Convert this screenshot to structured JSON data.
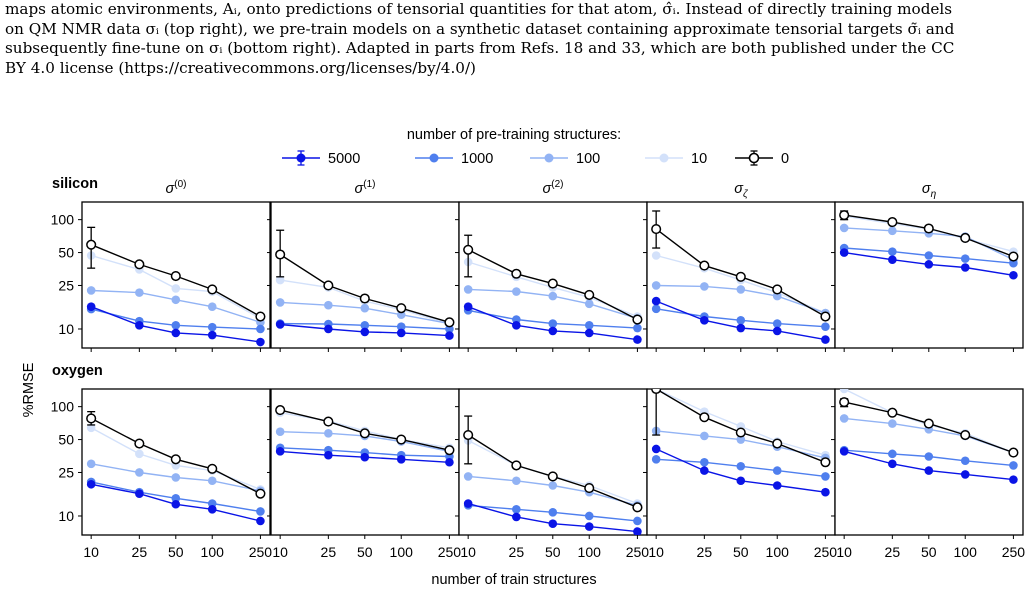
{
  "caption": {
    "lines": [
      "maps atomic environments, Aᵢ, onto predictions of tensorial quantities for that atom, σ̂ᵢ. Instead of directly training models",
      "on QM NMR data σᵢ (top right), we pre-train models on a synthetic dataset containing approximate tensorial targets σ̃ᵢ and",
      "subsequently fine-tune on σᵢ (bottom right). Adapted in parts from Refs. 18 and 33, which are both published under the CC",
      "BY 4.0 license (https://creativecommons.org/licenses/by/4.0/)"
    ]
  },
  "chart_data": {
    "type": "line",
    "legend_title": "number of pre-training structures:",
    "legend_position": "top-center",
    "series_styles": [
      {
        "name": "5000",
        "color": "#0a14e6",
        "fill": "#0a14e6"
      },
      {
        "name": "1000",
        "color": "#4f7fee",
        "fill": "#4f7fee"
      },
      {
        "name": "100",
        "color": "#92b3f4",
        "fill": "#92b3f4"
      },
      {
        "name": "10",
        "color": "#d3e1fa",
        "fill": "#d3e1fa"
      },
      {
        "name": "0",
        "color": "#000000",
        "fill": "#ffffff"
      }
    ],
    "x": [
      10,
      25,
      50,
      100,
      250
    ],
    "x_ticks": [
      "10",
      "25",
      "50",
      "100",
      "250"
    ],
    "y_ticks": [
      10,
      25,
      50,
      100
    ],
    "y_tick_labels": [
      "10",
      "25",
      "50",
      "100"
    ],
    "xscale": "log",
    "yscale": "log",
    "xlim": [
      8.4,
      300
    ],
    "ylim": [
      6.7,
      145
    ],
    "xlabel": "number of train structures",
    "ylabel": "%RMSE",
    "row_labels": [
      "silicon",
      "oxygen"
    ],
    "col_titles": [
      {
        "base": "σ",
        "sup": "(0)",
        "sub": ""
      },
      {
        "base": "σ",
        "sup": "(1)",
        "sub": ""
      },
      {
        "base": "σ",
        "sup": "(2)",
        "sub": ""
      },
      {
        "base": "σ",
        "sup": "",
        "sub": "ζ"
      },
      {
        "base": "σ",
        "sup": "",
        "sub": "η"
      }
    ],
    "panels": [
      {
        "row": 0,
        "col": 0,
        "errbar_0": [
          36,
          85
        ],
        "series": [
          {
            "name": "5000",
            "values": [
              16,
              10.8,
              9.2,
              8.8,
              7.6
            ]
          },
          {
            "name": "1000",
            "values": [
              15.2,
              11.8,
              10.8,
              10.4,
              10.0
            ]
          },
          {
            "name": "100",
            "values": [
              22.5,
              21.5,
              18.5,
              16.0,
              11.5
            ]
          },
          {
            "name": "10",
            "values": [
              47,
              35,
              23.5,
              22,
              12.5
            ]
          },
          {
            "name": "0",
            "values": [
              59,
              39,
              30.5,
              23,
              13
            ]
          }
        ]
      },
      {
        "row": 0,
        "col": 1,
        "errbar_0": [
          30,
          80
        ],
        "series": [
          {
            "name": "5000",
            "values": [
              11.0,
              10.0,
              9.4,
              9.2,
              8.7
            ]
          },
          {
            "name": "1000",
            "values": [
              11.2,
              11.1,
              10.8,
              10.5,
              10.0
            ]
          },
          {
            "name": "100",
            "values": [
              17.5,
              16.5,
              15.5,
              13.5,
              11.2
            ]
          },
          {
            "name": "10",
            "values": [
              28,
              24,
              18,
              15,
              11.2
            ]
          },
          {
            "name": "0",
            "values": [
              48,
              25,
              19,
              15.5,
              11.5
            ]
          }
        ]
      },
      {
        "row": 0,
        "col": 2,
        "errbar_0": [
          30,
          72
        ],
        "series": [
          {
            "name": "5000",
            "values": [
              16.0,
              10.8,
              9.6,
              9.2,
              8.0
            ]
          },
          {
            "name": "1000",
            "values": [
              14.8,
              12.2,
              11.2,
              10.8,
              10.2
            ]
          },
          {
            "name": "100",
            "values": [
              23.0,
              22.0,
              20.0,
              17.0,
              12.5
            ]
          },
          {
            "name": "10",
            "values": [
              41,
              30,
              24,
              19.5,
              13.0
            ]
          },
          {
            "name": "0",
            "values": [
              53,
              32,
              26,
              20.5,
              12.2
            ]
          }
        ]
      },
      {
        "row": 0,
        "col": 3,
        "errbar_0": [
          55,
          120
        ],
        "series": [
          {
            "name": "5000",
            "values": [
              18,
              12,
              10.2,
              9.6,
              8.0
            ]
          },
          {
            "name": "1000",
            "values": [
              15.3,
              13.0,
              12.0,
              11.2,
              10.5
            ]
          },
          {
            "name": "100",
            "values": [
              25,
              24.5,
              23,
              20,
              14
            ]
          },
          {
            "name": "10",
            "values": [
              47,
              36,
              28,
              21.5,
              14
            ]
          },
          {
            "name": "0",
            "values": [
              82,
              38,
              30,
              23,
              13
            ]
          }
        ]
      },
      {
        "row": 0,
        "col": 4,
        "errbar_0": [
          100,
          120
        ],
        "series": [
          {
            "name": "5000",
            "values": [
              50,
              43,
              39,
              36.5,
              31
            ]
          },
          {
            "name": "1000",
            "values": [
              55,
              51,
              47,
              44,
              40
            ]
          },
          {
            "name": "100",
            "values": [
              84,
              79,
              75,
              70,
              43
            ]
          },
          {
            "name": "10",
            "values": [
              108,
              92,
              82,
              67,
              51
            ]
          },
          {
            "name": "0",
            "values": [
              110,
              95,
              83,
              68,
              46
            ]
          }
        ]
      },
      {
        "row": 1,
        "col": 0,
        "errbar_0": [
          68,
          90
        ],
        "series": [
          {
            "name": "5000",
            "values": [
              19.5,
              16.0,
              12.8,
              11.5,
              9.0
            ]
          },
          {
            "name": "1000",
            "values": [
              20.5,
              16.5,
              14.5,
              13.0,
              11.0
            ]
          },
          {
            "name": "100",
            "values": [
              30,
              25,
              22.5,
              21,
              17
            ]
          },
          {
            "name": "10",
            "values": [
              64,
              37,
              29,
              26,
              17.5
            ]
          },
          {
            "name": "0",
            "values": [
              78,
              46,
              33,
              27,
              16
            ]
          }
        ]
      },
      {
        "row": 1,
        "col": 1,
        "errbar_0": [
          90,
          95
        ],
        "series": [
          {
            "name": "5000",
            "values": [
              39,
              36,
              34.5,
              33,
              31
            ]
          },
          {
            "name": "1000",
            "values": [
              42,
              40,
              38,
              36,
              35
            ]
          },
          {
            "name": "100",
            "values": [
              59,
              57,
              54,
              48,
              39
            ]
          },
          {
            "name": "10",
            "values": [
              88,
              74,
              60,
              50,
              42
            ]
          },
          {
            "name": "0",
            "values": [
              93,
              73,
              57,
              50,
              40
            ]
          }
        ]
      },
      {
        "row": 1,
        "col": 2,
        "errbar_0": [
          30,
          82
        ],
        "series": [
          {
            "name": "5000",
            "values": [
              13.0,
              9.8,
              8.5,
              8.0,
              7.2
            ]
          },
          {
            "name": "1000",
            "values": [
              12.5,
              11.5,
              10.8,
              10.0,
              9.0
            ]
          },
          {
            "name": "100",
            "values": [
              23,
              21,
              19,
              16.5,
              12.5
            ]
          },
          {
            "name": "10",
            "values": [
              49,
              29,
              23,
              19,
              13
            ]
          },
          {
            "name": "0",
            "values": [
              55,
              29,
              23,
              18,
              12
            ]
          }
        ]
      },
      {
        "row": 1,
        "col": 3,
        "errbar_0": [
          55,
          145
        ],
        "series": [
          {
            "name": "5000",
            "values": [
              41,
              26,
              21,
              19,
              16.5
            ]
          },
          {
            "name": "1000",
            "values": [
              33,
              31,
              28.5,
              26,
              23
            ]
          },
          {
            "name": "100",
            "values": [
              60,
              54,
              50,
              43,
              34
            ]
          },
          {
            "name": "10",
            "values": [
              145,
              90,
              66,
              48,
              36
            ]
          },
          {
            "name": "0",
            "values": [
              145,
              80,
              58,
              46,
              31
            ]
          }
        ]
      },
      {
        "row": 1,
        "col": 4,
        "errbar_0": [
          100,
          118
        ],
        "series": [
          {
            "name": "5000",
            "values": [
              39,
              30,
              26,
              24,
              21.5
            ]
          },
          {
            "name": "1000",
            "values": [
              40,
              37,
              35,
              32,
              29
            ]
          },
          {
            "name": "100",
            "values": [
              78,
              70,
              62,
              54,
              38
            ]
          },
          {
            "name": "10",
            "values": [
              145,
              88,
              68,
              57,
              38
            ]
          },
          {
            "name": "0",
            "values": [
              110,
              88,
              70,
              55,
              38
            ]
          }
        ]
      }
    ]
  }
}
